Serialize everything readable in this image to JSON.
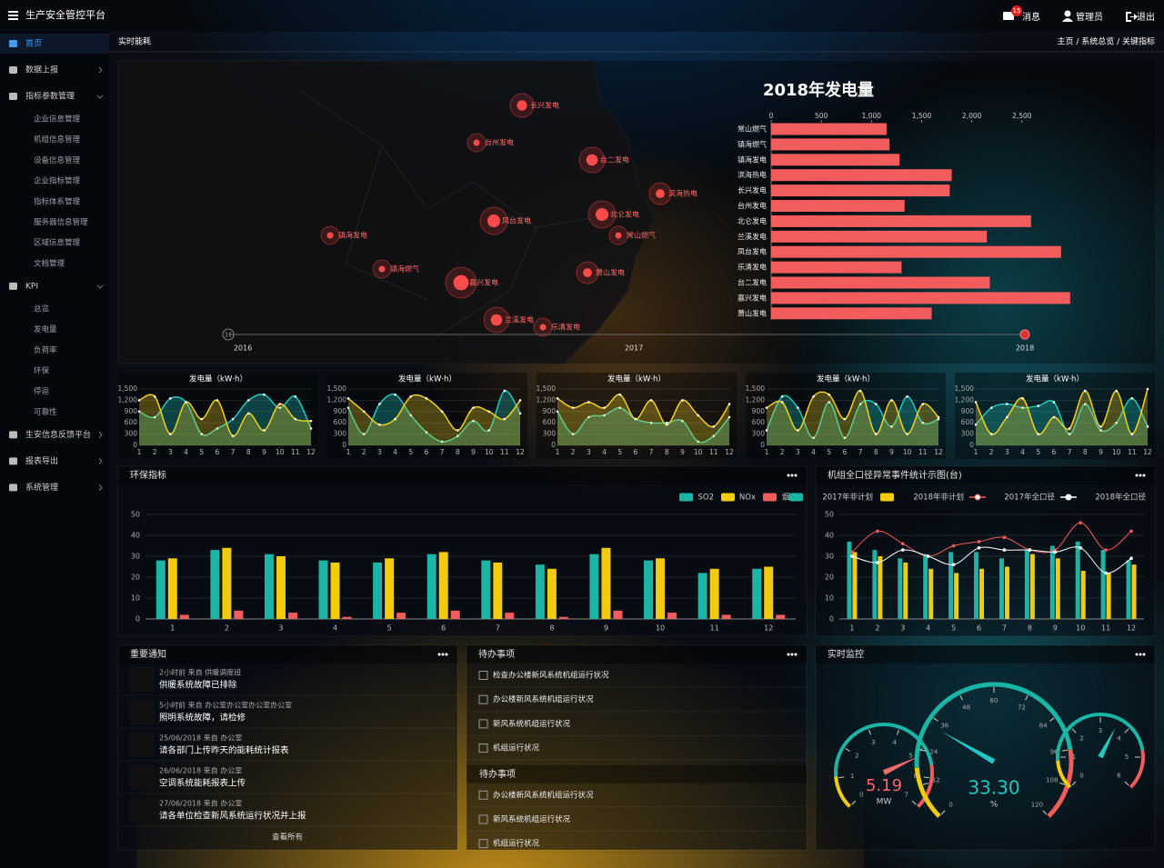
{
  "header": {
    "title": "生产安全管控平台",
    "badge": 15,
    "messages": "消息",
    "user": "管理员",
    "logout": "退出"
  },
  "sidebar": [
    {
      "label": "首页"
    },
    {
      "label": "数据上报"
    },
    {
      "label": "指标参数管理",
      "children": [
        "企业信息管理",
        "机组信息管理",
        "设备信息管理",
        "企业指标管理",
        "指标体系管理",
        "服务器信息管理",
        "区域信息管理",
        "文档管理"
      ]
    },
    {
      "label": "KPI",
      "children": [
        "总览",
        "发电量",
        "负荷率",
        "环保",
        "停运",
        "可靠性"
      ]
    },
    {
      "label": "生安信息反馈平台"
    },
    {
      "label": "报表导出"
    },
    {
      "label": "系统管理"
    }
  ],
  "breadcrumb": {
    "title": "实时能耗",
    "path": "主页 / 系统总览 / 关键指标"
  },
  "map": {
    "points": [
      "长兴发电",
      "台州发电",
      "台二发电",
      "滨海热电",
      "北仑发电",
      "凤台发电",
      "常山燃气",
      "镇海发电",
      "镇海燃气",
      "萧山发电",
      "嘉兴发电",
      "兰溪发电",
      "乐清发电"
    ],
    "timeline": [
      2016,
      2017,
      2018
    ]
  },
  "chart_data": [
    {
      "type": "hbar",
      "title": "2018年发电量",
      "categories": [
        "常山燃气",
        "镇海燃气",
        "镇海发电",
        "滨海热电",
        "长兴发电",
        "台州发电",
        "北仑发电",
        "兰溪发电",
        "凤台发电",
        "乐清发电",
        "台二发电",
        "嘉兴发电",
        "萧山发电"
      ],
      "values": [
        1150,
        1180,
        1280,
        1800,
        1780,
        1330,
        2590,
        2150,
        2890,
        1300,
        2180,
        2980,
        1600
      ],
      "color": "#f25c5c",
      "xlim": [
        0,
        3000
      ],
      "xticks": [
        0,
        500,
        {
          "value": 1000,
          "label": "1,000"
        },
        {
          "value": 1500,
          "label": "1,500"
        },
        {
          "value": 2000,
          "label": "2,000"
        },
        {
          "value": 2500,
          "label": "2,500"
        }
      ]
    },
    {
      "type": "line",
      "title": "发电量（kW·h）",
      "categories": [
        1,
        2,
        3,
        4,
        5,
        6,
        7,
        8,
        9,
        10,
        11,
        12
      ],
      "ylim": [
        0,
        1500
      ],
      "yticks": [
        0,
        300,
        600,
        900,
        {
          "value": 1200,
          "label": "1,200"
        },
        {
          "value": 1500,
          "label": "1,500"
        }
      ],
      "grid": true,
      "series": [
        {
          "color": "#1fc8c0",
          "values": [
            900,
            750,
            1250,
            1150,
            300,
            450,
            700,
            1200,
            1350,
            1000,
            1300,
            450
          ]
        },
        {
          "color": "#f0d020",
          "values": [
            1200,
            1300,
            300,
            1150,
            700,
            1200,
            250,
            850,
            400,
            1100,
            700,
            650
          ]
        }
      ]
    },
    {
      "type": "line",
      "title": "发电量（kW·h）",
      "categories": [
        1,
        2,
        3,
        4,
        5,
        6,
        7,
        8,
        9,
        10,
        11,
        12
      ],
      "ylim": [
        0,
        1500
      ],
      "yticks": [
        0,
        300,
        600,
        900,
        {
          "value": 1200,
          "label": "1,200"
        },
        {
          "value": 1500,
          "label": "1,500"
        }
      ],
      "grid": true,
      "series": [
        {
          "color": "#1fc8c0",
          "values": [
            1000,
            300,
            1100,
            1350,
            800,
            350,
            100,
            250,
            650,
            400,
            1450,
            850
          ]
        },
        {
          "color": "#f0d020",
          "values": [
            1250,
            900,
            550,
            700,
            1300,
            1250,
            900,
            400,
            1000,
            900,
            700,
            1200
          ]
        }
      ]
    },
    {
      "type": "line",
      "title": "发电量（kW·h）",
      "categories": [
        1,
        2,
        3,
        4,
        5,
        6,
        7,
        8,
        9,
        10,
        11,
        12
      ],
      "ylim": [
        0,
        1500
      ],
      "yticks": [
        0,
        300,
        600,
        900,
        {
          "value": 1200,
          "label": "1,200"
        },
        {
          "value": 1500,
          "label": "1,500"
        }
      ],
      "grid": true,
      "series": [
        {
          "color": "#1fc8c0",
          "values": [
            900,
            300,
            750,
            800,
            1000,
            700,
            600,
            600,
            650,
            100,
            250,
            750
          ]
        },
        {
          "color": "#f0d020",
          "values": [
            1250,
            1000,
            1150,
            1000,
            1350,
            700,
            1200,
            550,
            1200,
            800,
            500,
            1100
          ]
        }
      ]
    },
    {
      "type": "line",
      "title": "发电量（kW·h）",
      "categories": [
        1,
        2,
        3,
        4,
        5,
        6,
        7,
        8,
        9,
        10,
        11,
        12
      ],
      "ylim": [
        0,
        1500
      ],
      "yticks": [
        0,
        300,
        600,
        900,
        {
          "value": 1200,
          "label": "1,200"
        },
        {
          "value": 1500,
          "label": "1,500"
        }
      ],
      "grid": true,
      "series": [
        {
          "color": "#1fc8c0",
          "values": [
            400,
            1300,
            1000,
            200,
            1150,
            200,
            1100,
            1100,
            500,
            1300,
            600,
            700
          ]
        },
        {
          "color": "#f0d020",
          "values": [
            1000,
            1150,
            400,
            1300,
            1350,
            700,
            1450,
            300,
            1200,
            300,
            1100,
            750
          ]
        }
      ]
    },
    {
      "type": "line",
      "title": "发电量（kW·h）",
      "categories": [
        1,
        2,
        3,
        4,
        5,
        6,
        7,
        8,
        9,
        10,
        11,
        12
      ],
      "ylim": [
        0,
        1500
      ],
      "yticks": [
        0,
        300,
        600,
        900,
        {
          "value": 1200,
          "label": "1,200"
        },
        {
          "value": 1500,
          "label": "1,500"
        }
      ],
      "grid": true,
      "series": [
        {
          "color": "#1fc8c0",
          "values": [
            550,
            1000,
            1100,
            1000,
            1050,
            1150,
            300,
            1100,
            400,
            600,
            1250,
            500
          ]
        },
        {
          "color": "#f0d020",
          "values": [
            1150,
            300,
            750,
            1250,
            300,
            750,
            450,
            1450,
            500,
            1450,
            300,
            1500
          ]
        }
      ]
    },
    {
      "type": "bar",
      "title": "环保指标",
      "categories": [
        1,
        2,
        3,
        4,
        5,
        6,
        7,
        8,
        9,
        10,
        11,
        12
      ],
      "ylim": [
        0,
        50
      ],
      "yticks": [
        0,
        10,
        20,
        30,
        40,
        50
      ],
      "grid": true,
      "legend": "top-right",
      "series": [
        {
          "name": "SO2",
          "color": "#1ab5a5",
          "values": [
            28,
            33,
            31,
            28,
            27,
            31,
            28,
            26,
            31,
            28,
            22,
            24
          ]
        },
        {
          "name": "NOx",
          "color": "#f2cc0c",
          "values": [
            29,
            34,
            30,
            27,
            29,
            32,
            27,
            24,
            34,
            29,
            24,
            25
          ]
        },
        {
          "name": "烟尘",
          "color": "#f25c5c",
          "values": [
            2,
            4,
            3,
            1,
            3,
            4,
            3,
            1,
            4,
            3,
            2,
            2
          ]
        }
      ]
    },
    {
      "type": "combo",
      "title": "机组全口径异常事件统计示图(台)",
      "categories": [
        1,
        2,
        3,
        4,
        5,
        6,
        7,
        8,
        9,
        10,
        11,
        12
      ],
      "ylim": [
        0,
        50
      ],
      "yticks": [
        0,
        10,
        20,
        30,
        40,
        50
      ],
      "grid": true,
      "legend": "top-right",
      "series": [
        {
          "name": "2017年非计划",
          "mark": "bar",
          "color": "#1ab5a5",
          "values": [
            37,
            33,
            29,
            31,
            32,
            32,
            29,
            33,
            35,
            37,
            33,
            28
          ]
        },
        {
          "name": "2018年非计划",
          "mark": "bar",
          "color": "#f2cc0c",
          "values": [
            32,
            30,
            27,
            24,
            22,
            24,
            25,
            31,
            29,
            23,
            22,
            26
          ]
        },
        {
          "name": "2017年全口径",
          "mark": "line",
          "color": "#f25c5c",
          "values": [
            32,
            42,
            36,
            30,
            35,
            37,
            39,
            33,
            33,
            46,
            33,
            42
          ]
        },
        {
          "name": "2018年全口径",
          "mark": "line",
          "color": "#ffffff",
          "values": [
            30,
            27,
            33,
            30,
            26,
            34,
            33,
            33,
            32,
            34,
            22,
            29
          ]
        }
      ]
    },
    {
      "type": "gauge",
      "values": [
        5.19
      ],
      "unit": "MW",
      "ylim": [
        0,
        7
      ],
      "yticks": [
        0,
        1,
        2,
        3,
        4,
        5,
        6,
        7
      ],
      "color": "#f26b6b"
    },
    {
      "type": "gauge",
      "values": [
        33.3
      ],
      "value_labels": [
        "33.30"
      ],
      "unit": "%",
      "ylim": [
        0,
        120
      ],
      "yticks": [
        0,
        12,
        24,
        36,
        48,
        60,
        72,
        84,
        96,
        108,
        120
      ],
      "color": "#1fc8c0"
    },
    {
      "type": "gauge",
      "values": [
        3.6
      ],
      "ylim": [
        0,
        6
      ],
      "yticks": [
        0,
        1,
        2,
        3,
        4,
        5,
        6
      ],
      "color": "#1fc8c0"
    }
  ],
  "notices": {
    "title": "重要通知",
    "items": [
      {
        "meta": "2小时前 来自 供暖调度班",
        "text": "供暖系统故障已排除"
      },
      {
        "meta": "5小时前 来自 办公室办公室办公室办公室",
        "text": "照明系统故障，请检修"
      },
      {
        "meta": "25/06/2018 来自 办公室",
        "text": "请各部门上传昨天的能耗统计报表"
      },
      {
        "meta": "26/06/2018 来自 办公室",
        "text": "空调系统能耗报表上传"
      },
      {
        "meta": "27/06/2018 来自 办公室",
        "text": "请各单位检查新风系统运行状况并上报"
      }
    ],
    "more": "查看所有"
  },
  "todos": [
    {
      "title": "待办事项",
      "items": [
        "检查办公楼新风系统机组运行状况",
        "办公楼新风系统机组运行状况",
        "新风系统机组运行状况",
        "机组运行状况"
      ]
    },
    {
      "title": "待办事项",
      "items": [
        "办公楼新风系统机组运行状况",
        "新风系统机组运行状况",
        "机组运行状况"
      ]
    }
  ],
  "monitor": {
    "title": "实时监控"
  }
}
